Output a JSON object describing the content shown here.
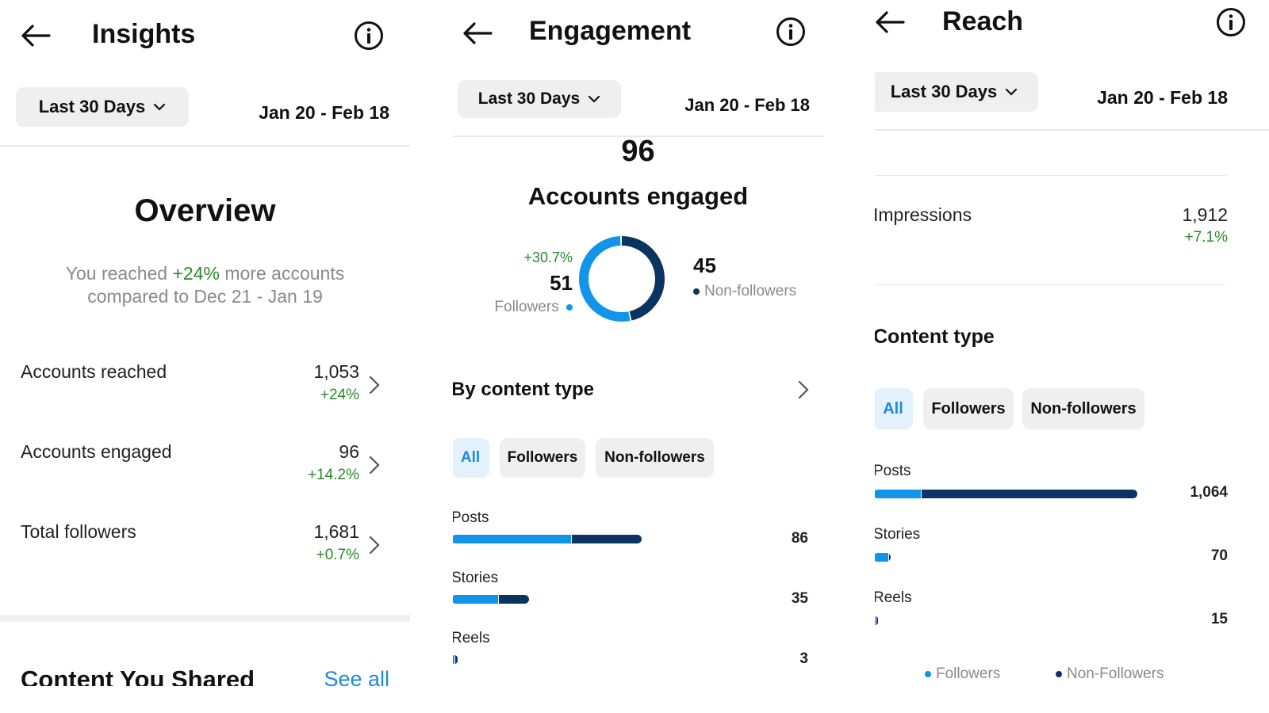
{
  "insights": {
    "title": "Insights",
    "range_label": "Last 30 Days",
    "date_range": "Jan 20 - Feb 18",
    "overview_title": "Overview",
    "summary_prefix": "You reached ",
    "summary_highlight": "+24%",
    "summary_suffix": " more accounts",
    "summary_line2": "compared to Dec 21 - Jan 19",
    "rows": [
      {
        "label": "Accounts reached",
        "value": "1,053",
        "change": "+24%"
      },
      {
        "label": "Accounts engaged",
        "value": "96",
        "change": "+14.2%"
      },
      {
        "label": "Total followers",
        "value": "1,681",
        "change": "+0.7%"
      }
    ],
    "content_shared_title": "Content You Shared",
    "see_all": "See all"
  },
  "engagement": {
    "title": "Engagement",
    "range_label": "Last 30 Days",
    "date_range": "Jan 20 - Feb 18",
    "total": "96",
    "total_label": "Accounts engaged",
    "followers_change": "+30.7%",
    "followers_value": "51",
    "followers_label": "Followers",
    "nonfollowers_value": "45",
    "nonfollowers_label": "Non-followers",
    "donut": {
      "followers": 51,
      "nonfollowers": 45
    },
    "by_content_type": "By content type",
    "chips": [
      "All",
      "Followers",
      "Non-followers"
    ],
    "bars": [
      {
        "label": "Posts",
        "value": "86",
        "followers_share": 0.63
      },
      {
        "label": "Stories",
        "value": "35",
        "followers_share": 0.6
      },
      {
        "label": "Reels",
        "value": "3",
        "followers_share": 0.5
      }
    ],
    "bar_max": 86
  },
  "reach": {
    "title": "Reach",
    "range_label": "Last 30 Days",
    "date_range": "Jan 20 - Feb 18",
    "impressions_label": "Impressions",
    "impressions_value": "1,912",
    "impressions_change": "+7.1%",
    "content_type_title": "Content type",
    "chips": [
      "All",
      "Followers",
      "Non-followers"
    ],
    "bars": [
      {
        "label": "Posts",
        "value": "1,064",
        "followers_share": 0.18
      },
      {
        "label": "Stories",
        "value": "70",
        "followers_share": 0.85
      },
      {
        "label": "Reels",
        "value": "15",
        "followers_share": 0.5
      }
    ],
    "bar_max": 1064,
    "legend_followers": "Followers",
    "legend_nonfollowers": "Non-Followers"
  },
  "colors": {
    "followers": "#1294e8",
    "nonfollowers": "#0b3463",
    "positive": "#2a8a2a",
    "chip_active_bg": "#e2f1fc"
  }
}
